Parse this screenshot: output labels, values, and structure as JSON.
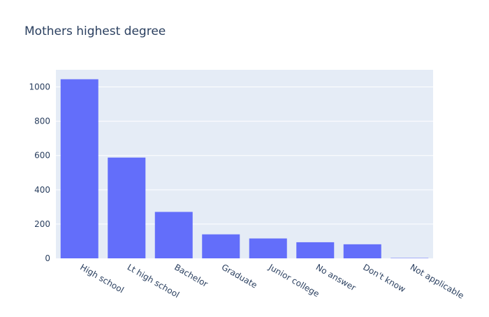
{
  "chart_data": {
    "type": "bar",
    "title": "Mothers highest degree",
    "xlabel": "",
    "ylabel": "",
    "categories": [
      "High school",
      "Lt high school",
      "Bachelor",
      "Graduate",
      "Junior college",
      "No answer",
      "Don't know",
      "Not applicable"
    ],
    "values": [
      1045,
      588,
      271,
      140,
      116,
      94,
      82,
      2
    ],
    "ylim": [
      0,
      1100
    ],
    "yticks": [
      0,
      200,
      400,
      600,
      800,
      1000
    ],
    "grid": true,
    "legend": "none",
    "colors": {
      "bar": "#636efa",
      "plot_background": "#e5ecf6",
      "gridline": "#ffffff",
      "text": "#2a3f5f"
    }
  }
}
